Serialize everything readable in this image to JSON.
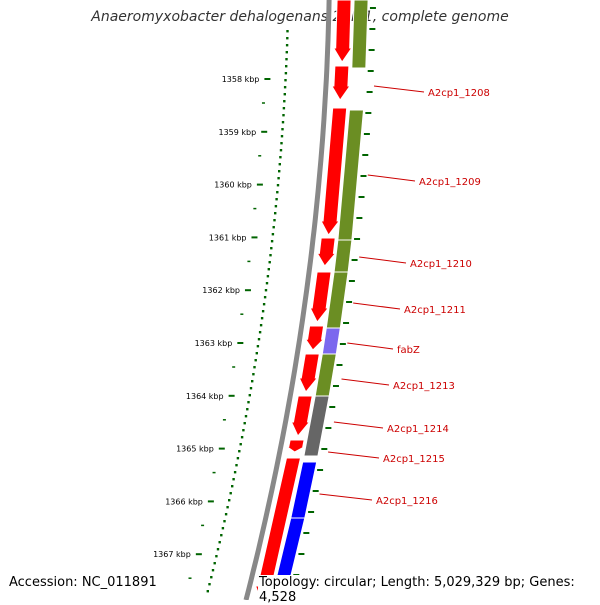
{
  "title": "Anaeromyxobacter dehalogenans 2CP-1, complete genome",
  "accession_text": "Accession: NC_011891",
  "topology_text": "Topology: circular; Length: 5,029,329 bp; Genes: 4,528",
  "ruler_ticks": [
    "1358 kbp",
    "1359 kbp",
    "1360 kbp",
    "1361 kbp",
    "1362 kbp",
    "1363 kbp",
    "1364 kbp",
    "1365 kbp",
    "1366 kbp",
    "1367 kbp"
  ],
  "gene_labels": [
    "A2cp1_1208",
    "A2cp1_1209",
    "A2cp1_1210",
    "A2cp1_1211",
    "fabZ",
    "A2cp1_1213",
    "A2cp1_1214",
    "A2cp1_1215",
    "A2cp1_1216"
  ],
  "colors": {
    "cds": "#ff0000",
    "cog_green": "#6b8e23",
    "cog_blue": "#0000ff",
    "cog_violet": "#7b68ee",
    "cog_grey": "#666666",
    "backbone": "#888888",
    "ruler": "#006400",
    "label": "#cc0000"
  }
}
